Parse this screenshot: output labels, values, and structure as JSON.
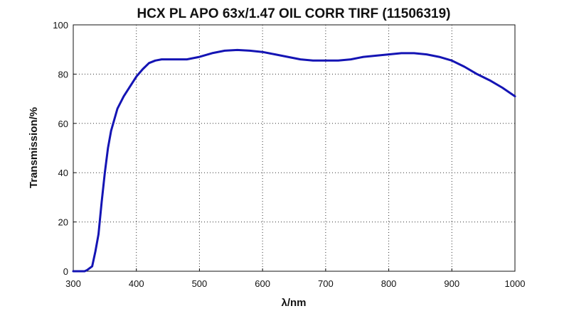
{
  "chart_data": {
    "type": "line",
    "title": "HCX PL APO 63x/1.47 OIL CORR TIRF (11506319)",
    "xlabel": "λ/nm",
    "ylabel": "Transmission/%",
    "xlim": [
      300,
      1000
    ],
    "ylim": [
      0,
      100
    ],
    "xticks": [
      300,
      400,
      500,
      600,
      700,
      800,
      900,
      1000
    ],
    "yticks": [
      0,
      20,
      40,
      60,
      80,
      100
    ],
    "grid": true,
    "line_color": "#1414b4",
    "series": [
      {
        "x": [
          300,
          310,
          318,
          322,
          330,
          335,
          340,
          345,
          350,
          355,
          360,
          370,
          380,
          390,
          400,
          410,
          420,
          430,
          440,
          450,
          460,
          470,
          480,
          500,
          520,
          540,
          560,
          580,
          600,
          620,
          640,
          660,
          680,
          700,
          720,
          740,
          760,
          780,
          800,
          820,
          840,
          860,
          880,
          900,
          920,
          940,
          960,
          980,
          1000
        ],
        "y": [
          0,
          0,
          0,
          0.5,
          2,
          8,
          15,
          28,
          40,
          50,
          57,
          66,
          71,
          75,
          79,
          82,
          84.5,
          85.5,
          86,
          86,
          86,
          86,
          86,
          87,
          88.5,
          89.5,
          89.8,
          89.5,
          89,
          88,
          87,
          86,
          85.5,
          85.5,
          85.5,
          86,
          87,
          87.5,
          88,
          88.5,
          88.5,
          88,
          87,
          85.5,
          83,
          80,
          77.5,
          74.5,
          71
        ]
      }
    ]
  }
}
